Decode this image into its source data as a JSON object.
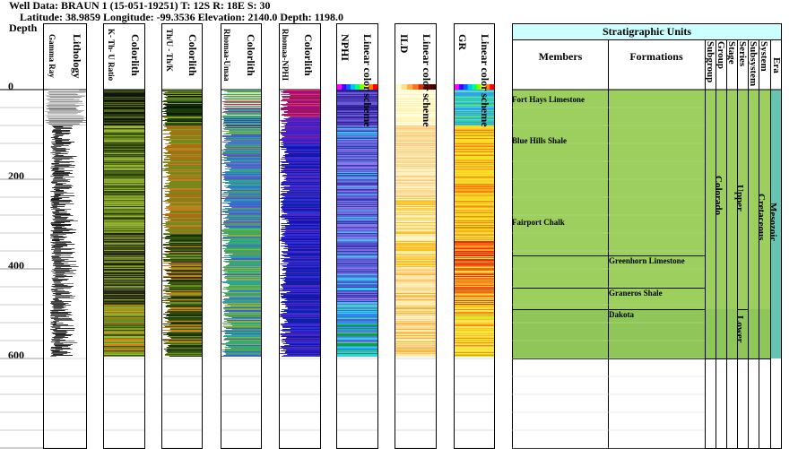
{
  "header": {
    "line1": "Well Data: BRAUN 1 (15-051-19251) T: 12S R: 18E S: 30",
    "line2": "Latitude: 38.9859 Longitude: -99.3536 Elevation: 2140.0 Depth: 1198.0"
  },
  "depth": {
    "label": "Depth",
    "ticks": [
      "0",
      "200",
      "400",
      "600"
    ]
  },
  "tracks": {
    "gamma_ray": "Gamma Ray",
    "lithology": "Lithology",
    "th_u_k_ratio": "K- Th- U Ratio",
    "colorlith1": "Colorlith",
    "thu_thk": "Th/U - Th/K",
    "colorlith2": "Colorlith",
    "rhomaa_umaa": "Rhomaa-Umaa",
    "colorlith3": "Colorlith",
    "rhomaa_nphi": "Rhomaa-NPHI",
    "colorlith4": "Colorlith",
    "scheme_title": "Linear color scheme",
    "nphi": "NPHI",
    "ild": "ILD",
    "gr": "GR"
  },
  "strat": {
    "title": "Stratigraphic Units",
    "members_header": "Members",
    "formations_header": "Formations",
    "col_headers": [
      "Subgroup",
      "Group",
      "Stage",
      "Series",
      "Subsystem",
      "System",
      "Era"
    ],
    "members": [
      "Fort Hays Limestone",
      "Blue Hills Shale",
      "Fairport Chalk"
    ],
    "formations": [
      "Greenhorn Limestone",
      "Graneros Shale",
      "Dakota"
    ],
    "group": "Colorado",
    "series_upper": "Upper",
    "series_lower": "Lower",
    "system": "Cretaceous",
    "era": "Mesozoic"
  },
  "colors": {
    "strat_fill": "#9dcf5e",
    "strat_title_bg": "#ccffff",
    "era_fill": "#67c4b3",
    "lower_fill": "#8fc65a"
  }
}
